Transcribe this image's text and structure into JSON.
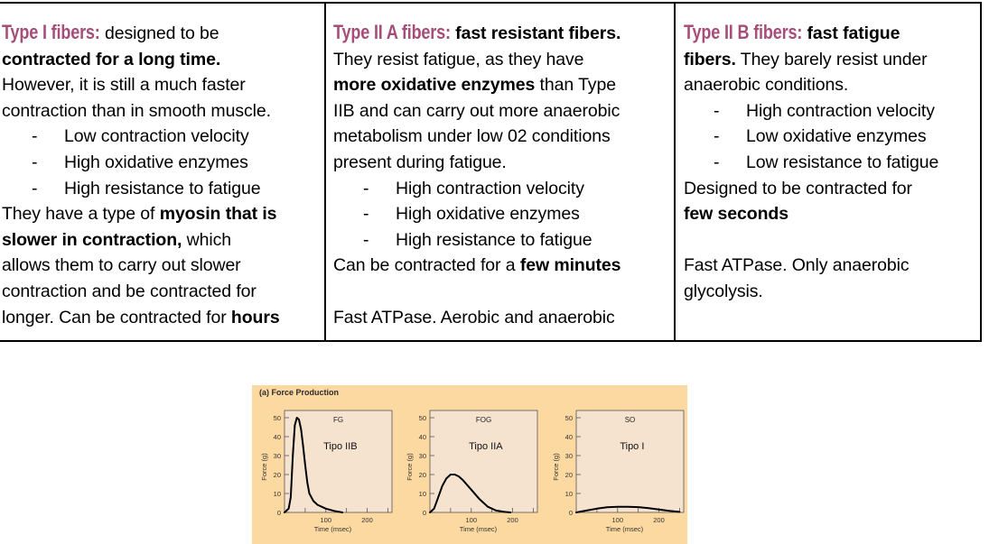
{
  "table": {
    "columns": [
      {
        "heading": "Type I fibers:",
        "lines": [
          {
            "type": "head",
            "head": "Type I fibers:",
            "rest": " designed to be"
          },
          {
            "type": "text",
            "segments": [
              {
                "b": true,
                "t": "contracted for a long time."
              }
            ]
          },
          {
            "type": "text",
            "segments": [
              {
                "b": false,
                "t": "However, it is still a much faster"
              }
            ]
          },
          {
            "type": "text",
            "segments": [
              {
                "b": false,
                "t": "contraction than in smooth muscle."
              }
            ]
          },
          {
            "type": "bullet",
            "t": "Low contraction velocity"
          },
          {
            "type": "bullet",
            "t": "High oxidative enzymes"
          },
          {
            "type": "bullet",
            "t": "High resistance to fatigue"
          },
          {
            "type": "text",
            "segments": [
              {
                "b": false,
                "t": "They have a type of "
              },
              {
                "b": true,
                "t": "myosin that is"
              }
            ]
          },
          {
            "type": "text",
            "segments": [
              {
                "b": true,
                "t": "slower in contraction,"
              },
              {
                "b": false,
                "t": " which"
              }
            ]
          },
          {
            "type": "text",
            "segments": [
              {
                "b": false,
                "t": "allows them to carry out slower"
              }
            ]
          },
          {
            "type": "text",
            "segments": [
              {
                "b": false,
                "t": "contraction and be contracted for"
              }
            ]
          },
          {
            "type": "text",
            "segments": [
              {
                "b": false,
                "t": "longer. Can be contracted for "
              },
              {
                "b": true,
                "t": "hours"
              }
            ]
          }
        ]
      },
      {
        "heading": "Type II A fibers:",
        "lines": [
          {
            "type": "head",
            "head": "Type II A fibers:",
            "rest": " fast resistant fibers.",
            "rest_bold": true
          },
          {
            "type": "text",
            "segments": [
              {
                "b": false,
                "t": "They resist fatigue, as they have"
              }
            ]
          },
          {
            "type": "text",
            "segments": [
              {
                "b": true,
                "t": "more oxidative enzymes"
              },
              {
                "b": false,
                "t": " than Type"
              }
            ]
          },
          {
            "type": "text",
            "segments": [
              {
                "b": false,
                "t": "IIB and can carry out more anaerobic"
              }
            ]
          },
          {
            "type": "text",
            "segments": [
              {
                "b": false,
                "t": "metabolism under low 02 conditions"
              }
            ]
          },
          {
            "type": "text",
            "segments": [
              {
                "b": false,
                "t": "present during fatigue."
              }
            ]
          },
          {
            "type": "bullet",
            "t": "High contraction velocity"
          },
          {
            "type": "bullet",
            "t": "High oxidative enzymes"
          },
          {
            "type": "bullet",
            "t": "High resistance to fatigue"
          },
          {
            "type": "text",
            "segments": [
              {
                "b": false,
                "t": "Can be contracted for a "
              },
              {
                "b": true,
                "t": "few minutes"
              }
            ]
          },
          {
            "type": "blank"
          },
          {
            "type": "text",
            "segments": [
              {
                "b": false,
                "t": "Fast ATPase. Aerobic and anaerobic"
              }
            ]
          }
        ]
      },
      {
        "heading": "Type II B fibers:",
        "lines": [
          {
            "type": "head",
            "head": "Type II B fibers:",
            "rest": " fast fatigue",
            "rest_bold": true
          },
          {
            "type": "text",
            "segments": [
              {
                "b": true,
                "t": "fibers."
              },
              {
                "b": false,
                "t": " They barely resist under"
              }
            ]
          },
          {
            "type": "text",
            "segments": [
              {
                "b": false,
                "t": "anaerobic conditions."
              }
            ]
          },
          {
            "type": "bullet",
            "t": "High contraction velocity"
          },
          {
            "type": "bullet",
            "t": "Low oxidative enzymes"
          },
          {
            "type": "bullet",
            "t": "Low resistance to fatigue"
          },
          {
            "type": "text",
            "segments": [
              {
                "b": false,
                "t": "Designed to be contracted for"
              }
            ]
          },
          {
            "type": "text",
            "segments": [
              {
                "b": true,
                "t": "few seconds"
              }
            ]
          },
          {
            "type": "blank"
          },
          {
            "type": "text",
            "segments": [
              {
                "b": false,
                "t": "Fast ATPase. Only anaerobic"
              }
            ]
          },
          {
            "type": "text",
            "segments": [
              {
                "b": false,
                "t": "glycolysis."
              }
            ]
          }
        ]
      }
    ],
    "heading_color": "#a64d79",
    "bullet_char": "-"
  },
  "figure": {
    "title": "(a) Force Production",
    "background": "#fcd9a0",
    "plot_background": "#f5e3cf"
  },
  "chart_data": [
    {
      "type": "line",
      "title": "FG",
      "annotation": "Tipo IIB",
      "xlabel": "Time (msec)",
      "ylabel": "Force (g)",
      "xlim": [
        0,
        260
      ],
      "ylim": [
        0,
        50
      ],
      "xticks": [
        100,
        200
      ],
      "yticks": [
        0,
        10,
        20,
        30,
        40,
        50
      ],
      "x": [
        0,
        10,
        15,
        20,
        25,
        30,
        35,
        40,
        45,
        50,
        55,
        60,
        70,
        80,
        100,
        120,
        140
      ],
      "y": [
        0,
        2,
        8,
        30,
        46,
        50,
        49,
        44,
        35,
        25,
        16,
        10,
        6,
        4,
        2,
        0.8,
        0
      ]
    },
    {
      "type": "line",
      "title": "FOG",
      "annotation": "Tipo IIA",
      "xlabel": "Time (msec)",
      "ylabel": "Force (g)",
      "xlim": [
        0,
        260
      ],
      "ylim": [
        0,
        50
      ],
      "xticks": [
        100,
        200
      ],
      "yticks": [
        0,
        10,
        20,
        30,
        40,
        50
      ],
      "x": [
        0,
        10,
        20,
        30,
        40,
        50,
        60,
        70,
        80,
        100,
        120,
        140,
        160,
        180,
        195
      ],
      "y": [
        0,
        2,
        8,
        14,
        18,
        20,
        20,
        19,
        17,
        12,
        7,
        3,
        1,
        0.3,
        0
      ]
    },
    {
      "type": "line",
      "title": "SO",
      "annotation": "Tipo I",
      "xlabel": "Time (msec)",
      "ylabel": "Force (g)",
      "xlim": [
        0,
        260
      ],
      "ylim": [
        0,
        50
      ],
      "xticks": [
        100,
        200
      ],
      "yticks": [
        0,
        10,
        20,
        30,
        40,
        50
      ],
      "x": [
        0,
        25,
        50,
        75,
        100,
        125,
        150,
        175,
        200,
        225,
        250
      ],
      "y": [
        0,
        1,
        2,
        2.7,
        3,
        3,
        2.8,
        2.3,
        1.5,
        0.8,
        0.3
      ]
    }
  ]
}
